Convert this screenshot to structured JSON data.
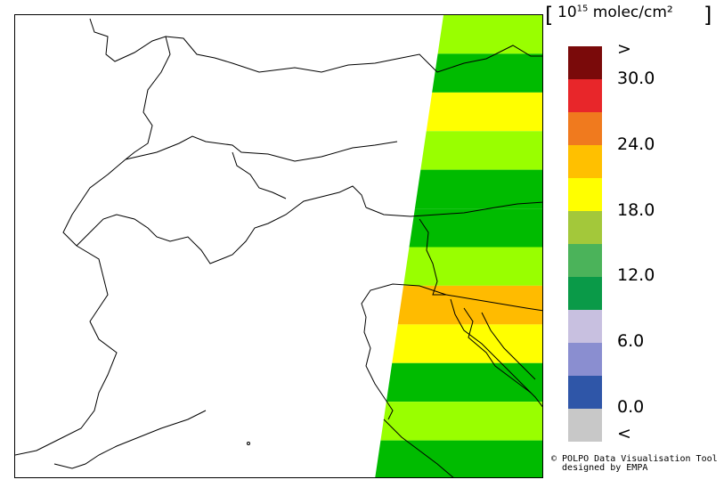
{
  "legend": {
    "unit_prefix": "10",
    "unit_exp": "15",
    "unit_suffix": " molec/cm²",
    "labels": {
      "gt": ">",
      "l30": "30.0",
      "l24": "24.0",
      "l18": "18.0",
      "l12": "12.0",
      "l6": "6.0",
      "l0": "0.0",
      "lt": "<"
    },
    "colors": [
      "#7a0a0a",
      "#e8262a",
      "#f07a1e",
      "#ffc000",
      "#ffff00",
      "#a3c83a",
      "#4bb35a",
      "#0a9a48",
      "#c8c0e0",
      "#8a8ed0",
      "#2f56a8",
      "#c8c8c8"
    ]
  },
  "bands": {
    "colors": [
      "#99ff00",
      "#00bb00",
      "#ffff00",
      "#99ff00",
      "#00bb00",
      "#00bb00",
      "#99ff00",
      "#ffbb00",
      "#ffff00",
      "#00bb00",
      "#99ff00",
      "#00bb00"
    ]
  },
  "credit": {
    "line1": "© POLPO Data Visualisation Tool",
    "line2": "  designed by EMPA"
  }
}
